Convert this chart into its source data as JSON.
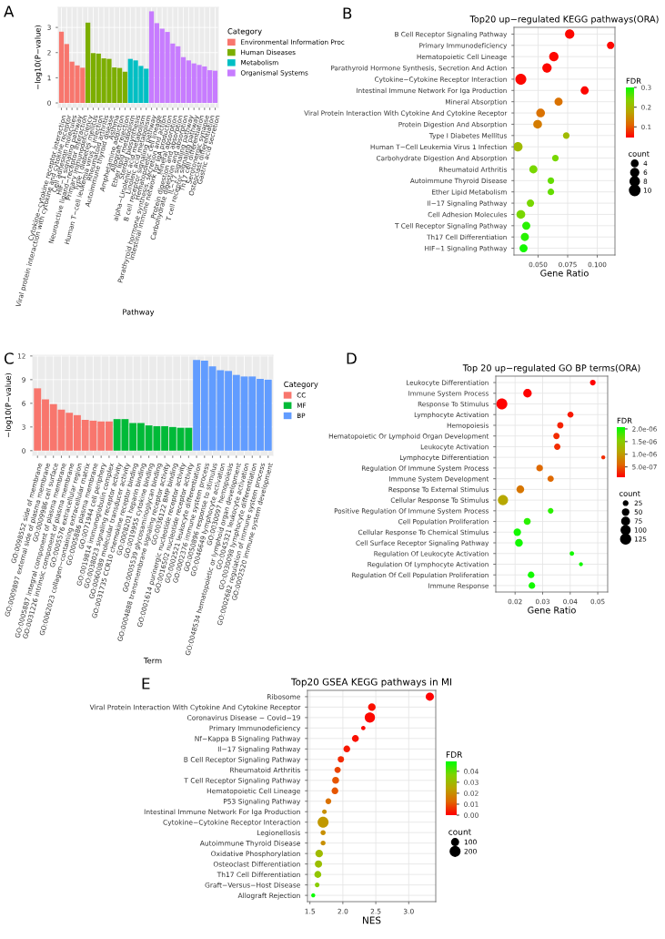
{
  "chart_data": [
    {
      "type": "bar",
      "annotations": [
        "A"
      ],
      "xlabel": "Pathway",
      "ylabel": "−log10(P−value)",
      "legend_title": "Category",
      "legend": "right",
      "grid": true,
      "categories": [
        "Cytokine−cytokine receptor interaction",
        "Viral protein interaction with cytokine and cytokine receptor",
        "Cell adhesion molecules",
        "HIF−1 signaling pathway",
        "Neuroactive ligand−receptor interaction",
        "Primary immunodeficiency",
        "Type I diabetes mellitus",
        "Human T−cell leukemia virus 1 infection",
        "Rheumatoid arthritis",
        "Autoimmune thyroid disease",
        "Asthma",
        "Amphetamine addiction",
        "Allograft rejection",
        "Ether lipid metabolism",
        "Steroid biosynthesis",
        "alpha−Linolenic acid metabolism",
        "Linoleic acid metabolism",
        "B cell receptor signaling pathway",
        "Hematopoietic cell lineage",
        "Parathyroid hormone synthesis, secretion and action",
        "Intestinal immune network for IgA production",
        "Mineral absorption",
        "Protein digestion and absorption",
        "Carbohydrate digestion and absorption",
        "IL−17 signaling pathway",
        "T cell receptor signaling pathway",
        "Th17 cell differentiation",
        "Serotonergic synapse",
        "Osteoclast differentiation",
        "Gastric acid secretion"
      ],
      "series": [
        {
          "name": "Environmental Information Proc",
          "color": "#f8766d",
          "values": [
            2.83,
            2.34,
            1.64,
            1.49,
            1.4,
            null,
            null,
            null,
            null,
            null,
            null,
            null,
            null,
            null,
            null,
            null,
            null,
            null,
            null,
            null,
            null,
            null,
            null,
            null,
            null,
            null,
            null,
            null,
            null,
            null
          ]
        },
        {
          "name": "Human Diseases",
          "color": "#7cae00",
          "values": [
            null,
            null,
            null,
            null,
            null,
            3.19,
            1.98,
            1.96,
            1.77,
            1.75,
            1.41,
            1.39,
            1.24,
            null,
            null,
            null,
            null,
            null,
            null,
            null,
            null,
            null,
            null,
            null,
            null,
            null,
            null,
            null,
            null,
            null
          ]
        },
        {
          "name": "Metabolism",
          "color": "#00bfc4",
          "values": [
            null,
            null,
            null,
            null,
            null,
            null,
            null,
            null,
            null,
            null,
            null,
            null,
            null,
            1.75,
            1.69,
            1.47,
            1.36,
            null,
            null,
            null,
            null,
            null,
            null,
            null,
            null,
            null,
            null,
            null,
            null,
            null
          ]
        },
        {
          "name": "Organismal Systems",
          "color": "#c77cff",
          "values": [
            null,
            null,
            null,
            null,
            null,
            null,
            null,
            null,
            null,
            null,
            null,
            null,
            null,
            null,
            null,
            null,
            null,
            3.64,
            3.17,
            2.95,
            2.82,
            2.36,
            2.25,
            1.82,
            1.69,
            1.57,
            1.51,
            1.45,
            1.3,
            1.28
          ]
        }
      ],
      "ylim": [
        -0.18,
        3.8
      ],
      "yticks": [
        0,
        1,
        2,
        3
      ]
    },
    {
      "type": "bubble",
      "orientation": "horizontal",
      "annotations": [
        "B"
      ],
      "title": "Top20 up−regulated KEGG pathways(ORA)",
      "xlabel": "Gene Ratio",
      "clabel": "FDR",
      "legend_title": "count",
      "grid": true,
      "categories": [
        "B Cell Receptor Signaling Pathway",
        "Primary Immunodeficiency",
        "Hematopoietic Cell Lineage",
        "Parathyroid Hormone Synthesis, Secretion And Action",
        "Cytokine−Cytokine Receptor Interaction",
        "Intestinal Immune Network For Iga Production",
        "Mineral Absorption",
        "Viral Protein Interaction With Cytokine And Cytokine Receptor",
        "Protein Digestion And Absorption",
        "Type I Diabetes Mellitus",
        "Human T−Cell Leukemia Virus 1 Infection",
        "Carbohydrate Digestion And Absorption",
        "Rheumatoid Arthritis",
        "Autoimmune Thyroid Disease",
        "Ether Lipid Metabolism",
        "Il−17 Signaling Pathway",
        "Cell Adhesion Molecules",
        "T Cell Receptor Signaling Pathway",
        "Th17 Cell Differentiation",
        "HIF−1 Signaling Pathway"
      ],
      "values": [
        0.0767,
        0.1113,
        0.0633,
        0.0575,
        0.0354,
        0.0894,
        0.0673,
        0.0521,
        0.0496,
        0.0738,
        0.0329,
        0.0646,
        0.046,
        0.0608,
        0.0608,
        0.0435,
        0.0354,
        0.04,
        0.0388,
        0.0377
      ],
      "sizes": [
        8,
        5,
        8,
        8,
        11,
        6,
        6,
        7,
        7,
        4,
        8,
        4,
        6,
        4,
        4,
        5,
        7,
        6,
        6,
        6
      ],
      "cvalues": [
        0.05,
        0.05,
        0.05,
        0.05,
        0.05,
        0.05,
        0.12,
        0.12,
        0.13,
        0.2,
        0.2,
        0.24,
        0.24,
        0.25,
        0.25,
        0.24,
        0.24,
        0.28,
        0.28,
        0.29
      ],
      "size_legend": [
        4,
        6,
        8,
        10
      ],
      "clim": [
        0.046,
        0.3
      ],
      "cticks": [
        0.1,
        0.2,
        0.3
      ],
      "xlim": [
        0.0296,
        0.115
      ],
      "xticks": [
        {
          "value": 0.05,
          "label": "0.050"
        },
        {
          "value": 0.075,
          "label": "0.075"
        },
        {
          "value": 0.1,
          "label": "0.100"
        }
      ]
    },
    {
      "type": "bar",
      "annotations": [
        "C"
      ],
      "xlabel": "Term",
      "ylabel": "−log10(P−value)",
      "legend_title": "Category",
      "legend": "right",
      "grid": true,
      "categories": [
        "GO:0098552 side of membrane",
        "GO:0009897 external side of plasma membrane",
        "GO:0009986 cell surface",
        "GO:0005887 integral component of plasma membrane",
        "GO:0031226 intrinsic component of plasma membrane",
        "GO:0005576 extracellular region",
        "GO:0062023 collagen−containing extracellular matrix",
        "GO:0005886 plasma membrane",
        "GO:0071944 cell periphery",
        "GO:0019814 immunoglobulin complex",
        "GO:0038023 signaling receptor activity",
        "GO:0060089 molecular transducer activity",
        "GO:0031735 CCR10 chemokine receptor binding",
        "GO:0008201 heparin binding",
        "GO:0019955 cytokine binding",
        "GO:0005539 glycosaminoglycan binding",
        "GO:0004888 transmembrane signaling receptor activity",
        "GO:0036122 BMP binding",
        "GO:0001614 purinergic nucleotide receptor activity",
        "GO:0016502 nucleotide receptor activity",
        "GO:0002521 leukocyte differentiation",
        "GO:0002376 immune system process",
        "GO:0050896 response to stimulus",
        "GO:0046649 lymphocyte activation",
        "GO:0030097 hemopoiesis",
        "GO:0048534 hematopoietic or lymphoid organ development",
        "GO:0045321 leukocyte activation",
        "GO:0030098 lymphocyte differentiation",
        "GO:0002682 regulation of immune system process",
        "GO:0002520 immune system development"
      ],
      "series": [
        {
          "name": "CC",
          "color": "#f8766d",
          "values": [
            7.9,
            6.5,
            5.9,
            5.2,
            4.8,
            4.5,
            3.9,
            3.8,
            3.7,
            3.7,
            null,
            null,
            null,
            null,
            null,
            null,
            null,
            null,
            null,
            null,
            null,
            null,
            null,
            null,
            null,
            null,
            null,
            null,
            null,
            null
          ]
        },
        {
          "name": "MF",
          "color": "#00ba38",
          "values": [
            null,
            null,
            null,
            null,
            null,
            null,
            null,
            null,
            null,
            null,
            4.0,
            4.0,
            3.5,
            3.5,
            3.2,
            3.1,
            3.1,
            3.0,
            2.9,
            2.9,
            null,
            null,
            null,
            null,
            null,
            null,
            null,
            null,
            null,
            null
          ]
        },
        {
          "name": "BP",
          "color": "#619cff",
          "values": [
            null,
            null,
            null,
            null,
            null,
            null,
            null,
            null,
            null,
            null,
            null,
            null,
            null,
            null,
            null,
            null,
            null,
            null,
            null,
            null,
            11.5,
            11.4,
            10.7,
            10.2,
            10.1,
            9.6,
            9.4,
            9.4,
            9.1,
            9.0
          ]
        }
      ],
      "ylim": [
        -0.6,
        12.1
      ],
      "yticks": [
        0,
        3,
        6,
        9,
        12
      ]
    },
    {
      "type": "bubble",
      "orientation": "horizontal",
      "annotations": [
        "D"
      ],
      "title": "Top 20 up−regulated GO BP terms(ORA)",
      "xlabel": "Gene Ratio",
      "clabel": "FDR",
      "legend_title": "count",
      "grid": true,
      "categories": [
        "Leukocyte Differentiation",
        "Immune System Process",
        "Response To Stimulus",
        "Lymphocyte Activation",
        "Hemopoiesis",
        "Hematopoietic Or Lymphoid Organ Development",
        "Leukocyte Activation",
        "Lymphocyte Differentiation",
        "Regulation Of Immune System Process",
        "Immune System Development",
        "Response To External Stimulus",
        "Cellular Response To Stimulus",
        "Positive Regulation Of Immune System Process",
        "Cell Population Proliferation",
        "Cellular Response To Chemical Stimulus",
        "Cell Surface Receptor Signaling Pathway",
        "Regulation Of Leukocyte Activation",
        "Regulation Of Lymphocyte Activation",
        "Regulation Of Cell Population Proliferation",
        "Immune Response"
      ],
      "values": [
        0.0482,
        0.0245,
        0.0152,
        0.0401,
        0.0364,
        0.035,
        0.0353,
        0.052,
        0.0289,
        0.0329,
        0.0219,
        0.0156,
        0.0329,
        0.0244,
        0.0208,
        0.0214,
        0.0406,
        0.0439,
        0.0258,
        0.0261
      ],
      "sizes": [
        40,
        90,
        150,
        45,
        50,
        50,
        50,
        20,
        55,
        50,
        75,
        130,
        40,
        60,
        70,
        75,
        25,
        20,
        55,
        55
      ],
      "cvalues": [
        1e-07,
        1e-07,
        1e-07,
        2e-07,
        2.5e-07,
        3e-07,
        3e-07,
        3e-07,
        6e-07,
        6e-07,
        7e-07,
        1.1e-06,
        1.9e-06,
        1.9e-06,
        2e-06,
        2e-06,
        2e-06,
        2e-06,
        2e-06,
        2e-06
      ],
      "size_legend": [
        25,
        50,
        75,
        100,
        125
      ],
      "clim": [
        9e-08,
        2.07e-06
      ],
      "cticks": [
        {
          "value": 5e-07,
          "label": "5.0e-07"
        },
        {
          "value": 1e-06,
          "label": "1.0e-06"
        },
        {
          "value": 1.5e-06,
          "label": "1.5e-06"
        },
        {
          "value": 2e-06,
          "label": "2.0e-06"
        }
      ],
      "xlim": [
        0.013,
        0.0536
      ],
      "xticks": [
        0.02,
        0.03,
        0.04,
        0.05
      ]
    },
    {
      "type": "bubble",
      "orientation": "horizontal",
      "annotations": [
        "E"
      ],
      "title": "Top20 GSEA KEGG pathways in MI",
      "xlabel": "NES",
      "clabel": "FDR",
      "legend_title": "count",
      "grid": true,
      "categories": [
        "Ribosome",
        "Viral Protein Interaction With Cytokine And Cytokine Receptor",
        "Coronavirus Disease − Covid−19",
        "Primary Immunodeficiency",
        "Nf−Kappa B Signaling Pathway",
        "Il−17 Signaling Pathway",
        "B Cell Receptor Signaling Pathway",
        "Rheumatoid Arthritis",
        "T Cell Receptor Signaling Pathway",
        "Hematopoietic Cell Lineage",
        "P53 Signaling Pathway",
        "Intestinal Immune Network For Iga Production",
        "Cytokine−Cytokine Receptor Interaction",
        "Legionellosis",
        "Autoimmune Thyroid Disease",
        "Oxidative Phosphorylation",
        "Osteoclast Differentiation",
        "Th17 Cell Differentiation",
        "Graft−Versus−Host Disease",
        "Allograft Rejection"
      ],
      "values": [
        3.32,
        2.44,
        2.41,
        2.31,
        2.19,
        2.06,
        1.97,
        1.92,
        1.89,
        1.88,
        1.78,
        1.72,
        1.7,
        1.7,
        1.7,
        1.64,
        1.63,
        1.62,
        1.61,
        1.55
      ],
      "sizes": [
        140,
        120,
        220,
        40,
        100,
        95,
        85,
        80,
        100,
        95,
        70,
        45,
        250,
        55,
        50,
        120,
        110,
        100,
        45,
        35
      ],
      "cvalues": [
        0.0,
        0.002,
        0.001,
        0.001,
        0.002,
        0.003,
        0.005,
        0.008,
        0.01,
        0.01,
        0.014,
        0.02,
        0.022,
        0.02,
        0.02,
        0.03,
        0.031,
        0.033,
        0.035,
        0.048
      ],
      "size_legend": [
        100,
        200
      ],
      "clim": [
        0.0,
        0.049
      ],
      "cticks": [
        {
          "value": 0.0,
          "label": "0.00"
        },
        {
          "value": 0.01,
          "label": "0.01"
        },
        {
          "value": 0.02,
          "label": "0.02"
        },
        {
          "value": 0.03,
          "label": "0.03"
        },
        {
          "value": 0.04,
          "label": "0.04"
        }
      ],
      "xlim": [
        1.463,
        3.41
      ],
      "xticks": [
        1.5,
        {
          "value": 2.0,
          "label": "2.0"
        },
        2.5,
        {
          "value": 3.0,
          "label": "3.0"
        }
      ]
    }
  ]
}
